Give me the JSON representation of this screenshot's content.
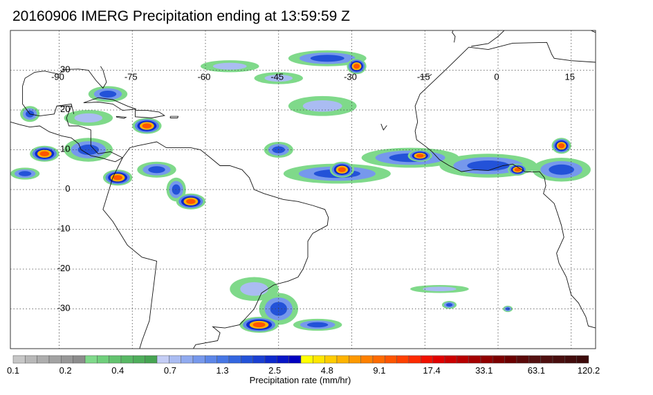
{
  "title": "20160906 IMERG Precipitation ending at 13:59:59 Z",
  "map": {
    "lon_range": [
      -100,
      20
    ],
    "lat_range": [
      -40,
      40
    ],
    "lon_ticks": [
      {
        "value": -90,
        "label": "-90"
      },
      {
        "value": -75,
        "label": "-75"
      },
      {
        "value": -60,
        "label": "-60"
      },
      {
        "value": -45,
        "label": "-45"
      },
      {
        "value": -30,
        "label": "-30"
      },
      {
        "value": -15,
        "label": "-15"
      },
      {
        "value": 0,
        "label": "0"
      },
      {
        "value": 15,
        "label": "15"
      }
    ],
    "lat_ticks": [
      {
        "value": 30,
        "label": "30"
      },
      {
        "value": 20,
        "label": "20"
      },
      {
        "value": 10,
        "label": "10"
      },
      {
        "value": 0,
        "label": "0"
      },
      {
        "value": -10,
        "label": "-10"
      },
      {
        "value": -20,
        "label": "-20"
      },
      {
        "value": -30,
        "label": "-30"
      }
    ],
    "gridlines": "dotted"
  },
  "colorbar": {
    "label": "Precipitation rate (mm/hr)",
    "tick_labels": [
      "0.1",
      "0.2",
      "0.4",
      "0.7",
      "1.3",
      "2.5",
      "4.8",
      "9.1",
      "17.4",
      "33.1",
      "63.1",
      "120.2"
    ],
    "colors": [
      "#c6c6c6",
      "#b8b8b8",
      "#adadad",
      "#a2a2a2",
      "#979797",
      "#8c8c8c",
      "#7fd98a",
      "#6fcf7b",
      "#63c36f",
      "#58b864",
      "#4fae5b",
      "#46a452",
      "#c4cdf5",
      "#aabcf2",
      "#90aaef",
      "#7698ec",
      "#5c86e8",
      "#4776e4",
      "#3366e0",
      "#2352d8",
      "#1a3fd2",
      "#0d29cc",
      "#0715c6",
      "#0000c0",
      "#ffff00",
      "#ffe600",
      "#ffcc00",
      "#ffb300",
      "#ff9900",
      "#ff8000",
      "#ff6a00",
      "#ff5500",
      "#ff4000",
      "#ff2a00",
      "#f01000",
      "#e00000",
      "#cc0000",
      "#b80000",
      "#a40000",
      "#900000",
      "#7c0000",
      "#6a0000",
      "#5a0a0a",
      "#541010",
      "#4e0f0f",
      "#480e0e",
      "#420c0c",
      "#3c0a0a"
    ]
  },
  "rain_cells": [
    {
      "lon": -84,
      "lat": 10,
      "rx": 5,
      "ry": 3,
      "level": "moderate"
    },
    {
      "lon": -78,
      "lat": 3,
      "rx": 3,
      "ry": 2,
      "level": "heavy"
    },
    {
      "lon": -70,
      "lat": 5,
      "rx": 4,
      "ry": 2,
      "level": "moderate"
    },
    {
      "lon": -66,
      "lat": 0,
      "rx": 2,
      "ry": 3,
      "level": "moderate"
    },
    {
      "lon": -63,
      "lat": -3,
      "rx": 3,
      "ry": 2,
      "level": "heavy"
    },
    {
      "lon": -72,
      "lat": 16,
      "rx": 3,
      "ry": 2,
      "level": "heavy"
    },
    {
      "lon": -80,
      "lat": 24,
      "rx": 4,
      "ry": 2,
      "level": "moderate"
    },
    {
      "lon": -93,
      "lat": 9,
      "rx": 3,
      "ry": 2,
      "level": "heavy"
    },
    {
      "lon": -97,
      "lat": 4,
      "rx": 3,
      "ry": 1.5,
      "level": "moderate"
    },
    {
      "lon": -55,
      "lat": 31,
      "rx": 6,
      "ry": 1.5,
      "level": "light"
    },
    {
      "lon": -45,
      "lat": 28,
      "rx": 5,
      "ry": 1.5,
      "level": "light"
    },
    {
      "lon": -35,
      "lat": 33,
      "rx": 8,
      "ry": 2,
      "level": "moderate"
    },
    {
      "lon": -29,
      "lat": 31,
      "rx": 2,
      "ry": 2,
      "level": "heavy"
    },
    {
      "lon": -36,
      "lat": 21,
      "rx": 7,
      "ry": 2.5,
      "level": "light"
    },
    {
      "lon": -45,
      "lat": 10,
      "rx": 3,
      "ry": 2,
      "level": "moderate"
    },
    {
      "lon": -33,
      "lat": 4,
      "rx": 11,
      "ry": 2.5,
      "level": "moderate"
    },
    {
      "lon": -32,
      "lat": 5,
      "rx": 2.5,
      "ry": 2,
      "level": "heavy"
    },
    {
      "lon": -18,
      "lat": 8,
      "rx": 10,
      "ry": 2.5,
      "level": "moderate"
    },
    {
      "lon": -16,
      "lat": 8.5,
      "rx": 2.5,
      "ry": 1.5,
      "level": "heavy"
    },
    {
      "lon": -2,
      "lat": 6,
      "rx": 10,
      "ry": 3,
      "level": "moderate"
    },
    {
      "lon": 4,
      "lat": 5,
      "rx": 2,
      "ry": 1.5,
      "level": "heavy"
    },
    {
      "lon": 13,
      "lat": 5,
      "rx": 6,
      "ry": 3,
      "level": "moderate"
    },
    {
      "lon": 13,
      "lat": 11,
      "rx": 2,
      "ry": 2,
      "level": "heavy"
    },
    {
      "lon": -50,
      "lat": -25,
      "rx": 5,
      "ry": 3,
      "level": "light"
    },
    {
      "lon": -45,
      "lat": -30,
      "rx": 4,
      "ry": 4,
      "level": "moderate"
    },
    {
      "lon": -49,
      "lat": -34,
      "rx": 4,
      "ry": 2,
      "level": "heavy"
    },
    {
      "lon": -37,
      "lat": -34,
      "rx": 5,
      "ry": 1.5,
      "level": "moderate"
    },
    {
      "lon": -12,
      "lat": -25,
      "rx": 6,
      "ry": 1,
      "level": "light"
    },
    {
      "lon": -10,
      "lat": -29,
      "rx": 1.5,
      "ry": 1,
      "level": "moderate"
    },
    {
      "lon": 2,
      "lat": -30,
      "rx": 1,
      "ry": 0.8,
      "level": "moderate"
    },
    {
      "lon": -84,
      "lat": 18,
      "rx": 5,
      "ry": 2,
      "level": "light"
    },
    {
      "lon": -96,
      "lat": 19,
      "rx": 2,
      "ry": 2,
      "level": "moderate"
    }
  ]
}
